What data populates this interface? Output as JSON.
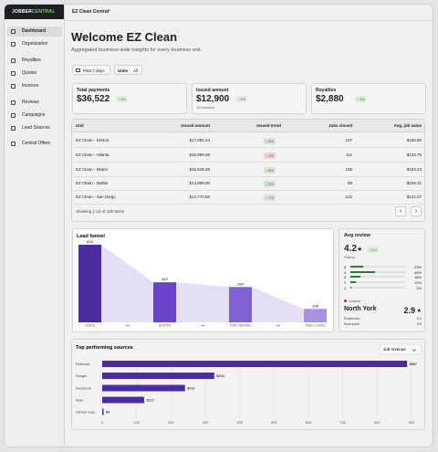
{
  "sidebar": {
    "logo": [
      "JOBBER",
      "CENTRAL"
    ],
    "nav": [
      "Dashboard",
      "Organization",
      "Royalties",
      "Quotes",
      "Invoices",
      "Reviews",
      "Campaigns",
      "Lead Sources",
      "Central Offers"
    ]
  },
  "topbar": {
    "account": "EZ Clean Central"
  },
  "header": {
    "title": "Welcome EZ Clean",
    "subtitle": "Aggregated business-wide insights for every business unit."
  },
  "filters": {
    "period": "Past 7 days",
    "units_label": "Units",
    "units_value": "All"
  },
  "kpis": [
    {
      "label": "Total payments",
      "value": "$36,522",
      "change": "↑ 3%"
    },
    {
      "label": "Issued amount",
      "value": "$12,900",
      "change": "↑ 3%",
      "note": "10 invoices"
    },
    {
      "label": "Royalties",
      "value": "$2,880",
      "change": "↑ 3%"
    }
  ],
  "table": {
    "columns": [
      "Unit",
      "Issued amount",
      "Issued trend",
      "Jobs closed",
      "Avg. job value"
    ],
    "rows": [
      [
        "EZ Clean - Detroit",
        "$17,092.44",
        "↑ 3%",
        "107",
        "$158.80"
      ],
      [
        "EZ Clean - Atlanta",
        "$16,999.99",
        "↓ 2%",
        "111",
        "$133.75"
      ],
      [
        "EZ Clean - Miami",
        "$16,549.35",
        "↑ 8%",
        "108",
        "$153.23"
      ],
      [
        "EZ Clean - Dallas",
        "$14,899.90",
        "↑ 3%",
        "98",
        "$159.31"
      ],
      [
        "EZ Clean - San Diego",
        "$14,770.65",
        "↑ 1%",
        "122",
        "$121.07"
      ]
    ],
    "trend_colors": [
      "#2e7d32",
      "#c62828",
      "#2e7d32",
      "#2e7d32",
      "#2e7d32"
    ],
    "footer": "Showing 1-10 of 100 items"
  },
  "review": {
    "title": "Avg review",
    "rating": "4.2",
    "change": "↑ 0.4",
    "rating_label": "Rating",
    "stars": [
      "5",
      "4",
      "3",
      "2",
      "1"
    ],
    "values": [
      23,
      45,
      18,
      10,
      2
    ],
    "value_labels": [
      "23%",
      "45%",
      "18%",
      "10%",
      "2%"
    ],
    "color": "#2e7d32",
    "lowest": {
      "label": "Lowest",
      "name": "North York",
      "rating": "2.9",
      "others": [
        [
          "Etobicoke",
          "3.1"
        ],
        [
          "Brampton",
          "3.5"
        ]
      ]
    }
  },
  "chart_data": [
    {
      "type": "funnel",
      "title": "Lead funnel",
      "categories": [
        "LEADS",
        "QUOTES",
        "JOBS CREATED",
        "JOBS CLOSED"
      ],
      "values": [
        624,
        322,
        284,
        108
      ],
      "colors": [
        "#4b2d9f",
        "#6a45c9",
        "#8061d4",
        "#a890e3"
      ],
      "fill": "#e4dff4"
    },
    {
      "type": "bar",
      "orientation": "horizontal",
      "title": "Top performing sources",
      "control": "Job revenue",
      "categories": [
        "Referrals",
        "Google",
        "Facebook",
        "Flyer",
        "Vehicle wrap"
      ],
      "values": [
        887,
        326,
        241,
        122,
        4
      ],
      "value_labels": [
        "$887",
        "$326",
        "$241",
        "$122",
        "$4"
      ],
      "color": "#4b2d9f",
      "xlim": [
        0,
        900
      ],
      "xticks": [
        0,
        100,
        200,
        300,
        400,
        500,
        600,
        700,
        800,
        900
      ],
      "grid": true
    }
  ]
}
